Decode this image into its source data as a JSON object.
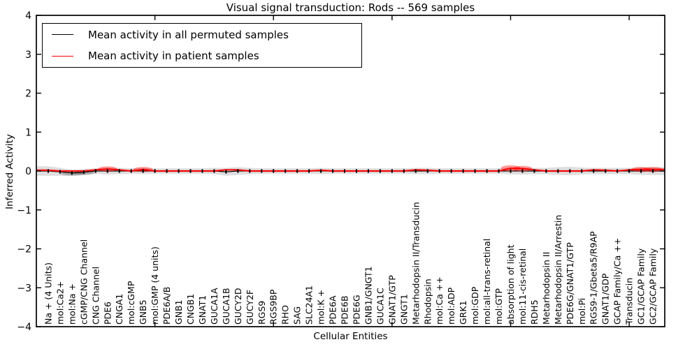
{
  "figure": {
    "title": "Visual signal transduction: Rods -- 569 samples",
    "xlabel": "Cellular Entities",
    "ylabel": "Inferred Activity",
    "legend": [
      {
        "label": "Mean activity in all permuted samples",
        "color": "#000000"
      },
      {
        "label": "Mean activity in patient samples",
        "color": "#ff0000"
      }
    ]
  },
  "chart_data": {
    "type": "line",
    "title": "Visual signal transduction: Rods -- 569 samples",
    "xlabel": "Cellular Entities",
    "ylabel": "Inferred Activity",
    "ylim": [
      -4,
      4
    ],
    "yticks": [
      4,
      3,
      2,
      1,
      0,
      -1,
      -2,
      -3,
      -4
    ],
    "xticks_major_positions": [
      10,
      20,
      30,
      40,
      50
    ],
    "grid": false,
    "legend_position": "upper left",
    "band_color": "#d6d6d6",
    "categories": [
      "Na + (4 Units)",
      "mol:Ca2+",
      "mol:Na +",
      "cGMP/CNG Channel",
      "CNG Channel",
      "PDE6",
      "CNGA1",
      "mol:cGMP",
      "GNB5",
      "mol:GMP (4 units)",
      "PDE6A/B",
      "GNB1",
      "CNGB1",
      "GNAT1",
      "GUCA1A",
      "GUCA1B",
      "GUCY2D",
      "GUCY2F",
      "RGS9",
      "RGS9BP",
      "RHO",
      "SAG",
      "SLC24A1",
      "mol:K +",
      "PDE6A",
      "PDE6B",
      "PDE6G",
      "GNB1/GNGT1",
      "GUCA1C",
      "GNAT1/GTP",
      "GNGT1",
      "Metarhodopsin II/Transducin",
      "Rhodopsin",
      "mol:Ca ++",
      "mol:ADP",
      "GRK1",
      "mol:GDP",
      "mol:all-trans-retinal",
      "mol:GTP",
      "absorption of light",
      "mol:11-cis-retinal",
      "RDH5",
      "Metarhodopsin II",
      "Metarhodopsin II/Arrestin",
      "PDE6G/GNAT1/GTP",
      "mol:Pi",
      "RGS9-1/Gbeta5/R9AP",
      "GNAT1/GDP",
      "GCAP Family/Ca ++",
      "Transducin",
      "GC1/GCAP Family",
      "GC2/GCAP Family"
    ],
    "series": [
      {
        "name": "Mean activity in all permuted samples",
        "color": "#000000",
        "values": [
          0,
          -0.02,
          -0.05,
          -0.03,
          0,
          0,
          0,
          0,
          0,
          0,
          0,
          0,
          0,
          0,
          0,
          -0.02,
          0,
          0,
          0,
          0,
          0,
          0,
          0,
          0,
          0,
          0,
          0,
          0,
          0,
          0,
          0,
          0,
          0,
          0,
          0,
          0,
          0,
          0,
          0,
          0,
          0,
          0,
          0,
          0,
          0,
          0,
          0,
          0,
          0,
          0,
          0,
          0
        ]
      },
      {
        "name": "Mean activity in patient samples",
        "color": "#ff0000",
        "values": [
          0.02,
          0,
          0,
          0,
          0.03,
          0.05,
          0.03,
          0,
          0.04,
          0,
          0,
          0,
          0,
          0,
          0,
          0.03,
          0.03,
          0,
          0,
          0,
          0,
          0,
          0,
          0.02,
          0,
          0,
          0,
          0,
          0,
          0,
          0,
          0.03,
          0.02,
          0,
          0,
          0,
          0,
          0,
          0,
          0.07,
          0.06,
          0.03,
          0,
          0,
          0,
          0,
          0.03,
          0.02,
          0,
          0.03,
          0.04,
          0.04
        ]
      }
    ],
    "band_halfwidth": [
      0.12,
      0.1,
      0.08,
      0.08,
      0.07,
      0.09,
      0.08,
      0.07,
      0.08,
      0.07,
      0.07,
      0.07,
      0.07,
      0.07,
      0.08,
      0.1,
      0.1,
      0.08,
      0.07,
      0.07,
      0.07,
      0.07,
      0.07,
      0.08,
      0.07,
      0.07,
      0.07,
      0.07,
      0.07,
      0.07,
      0.07,
      0.08,
      0.08,
      0.07,
      0.07,
      0.07,
      0.07,
      0.07,
      0.07,
      0.09,
      0.09,
      0.08,
      0.08,
      0.1,
      0.11,
      0.09,
      0.08,
      0.08,
      0.08,
      0.08,
      0.1,
      0.1
    ]
  }
}
